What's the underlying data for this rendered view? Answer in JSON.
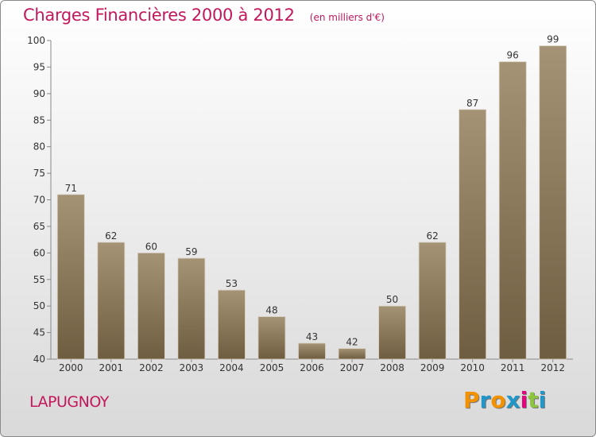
{
  "header": {
    "title": "Charges Financières 2000 à 2012",
    "unit": "(en milliers d'€)"
  },
  "footer": {
    "commune": "LAPUGNOY",
    "logo_letters": [
      "P",
      "r",
      "o",
      "x",
      "i",
      "t",
      "i"
    ],
    "logo_colors": [
      "#f39200",
      "#2196c8",
      "#f39200",
      "#2196c8",
      "#e5007e",
      "#8cc63f",
      "#2196c8"
    ]
  },
  "colors": {
    "bar_top": "#a59375",
    "bar_bottom": "#6e5d40",
    "title": "#c2185b"
  },
  "chart_data": {
    "type": "bar",
    "categories": [
      "2000",
      "2001",
      "2002",
      "2003",
      "2004",
      "2005",
      "2006",
      "2007",
      "2008",
      "2009",
      "2010",
      "2011",
      "2012"
    ],
    "values": [
      71,
      62,
      60,
      59,
      53,
      48,
      43,
      42,
      50,
      62,
      87,
      96,
      99
    ],
    "title": "Charges Financières 2000 à 2012",
    "ylim": [
      40,
      100
    ],
    "yticks": [
      40,
      45,
      50,
      55,
      60,
      65,
      70,
      75,
      80,
      85,
      90,
      95,
      100
    ],
    "grid": false,
    "data_labels": true
  }
}
